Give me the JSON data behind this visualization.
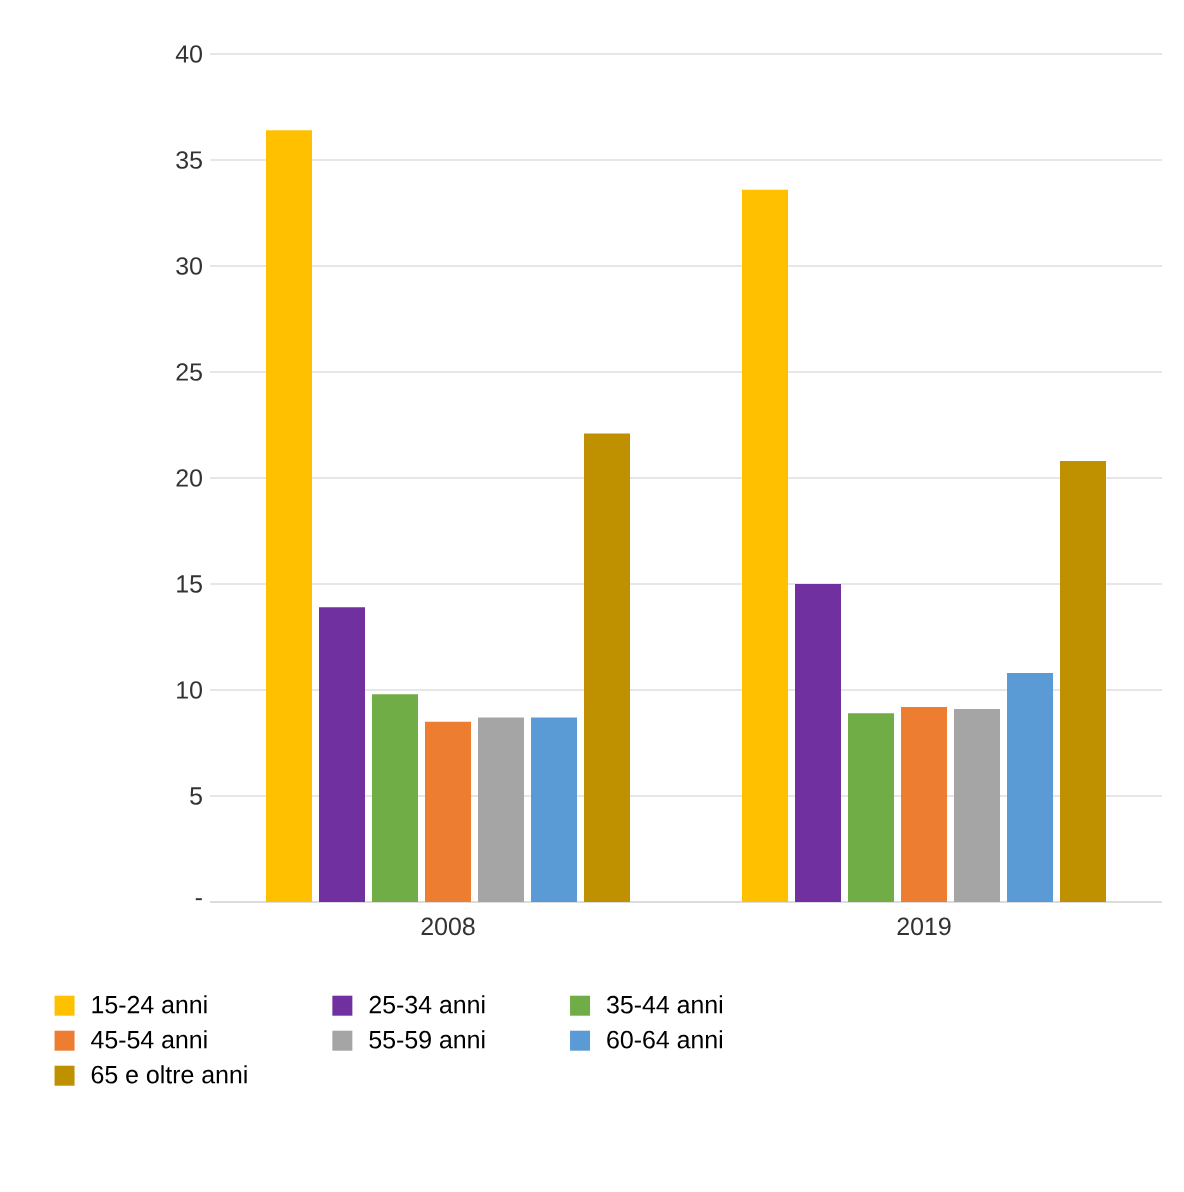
{
  "chart_data": {
    "type": "bar",
    "categories": [
      "2008",
      "2019"
    ],
    "series": [
      {
        "name": "15-24 anni",
        "color": "#ffc000",
        "values": [
          36.4,
          33.6
        ]
      },
      {
        "name": "25-34 anni",
        "color": "#7030a0",
        "values": [
          13.9,
          15.0
        ]
      },
      {
        "name": "35-44 anni",
        "color": "#70ad47",
        "values": [
          9.8,
          8.9
        ]
      },
      {
        "name": "45-54 anni",
        "color": "#ed7d31",
        "values": [
          8.5,
          9.2
        ]
      },
      {
        "name": "55-59 anni",
        "color": "#a5a5a5",
        "values": [
          8.7,
          9.1
        ]
      },
      {
        "name": "60-64 anni",
        "color": "#5b9bd5",
        "values": [
          8.7,
          10.8
        ]
      },
      {
        "name": "65 e oltre anni",
        "color": "#bf9000",
        "values": [
          22.1,
          20.8
        ]
      }
    ],
    "ylim": [
      0,
      40
    ],
    "yticks": [
      {
        "value": 0,
        "label": "-"
      },
      5,
      10,
      15,
      20,
      25,
      30,
      35,
      40
    ],
    "grid": "y",
    "legend": "bottom"
  }
}
